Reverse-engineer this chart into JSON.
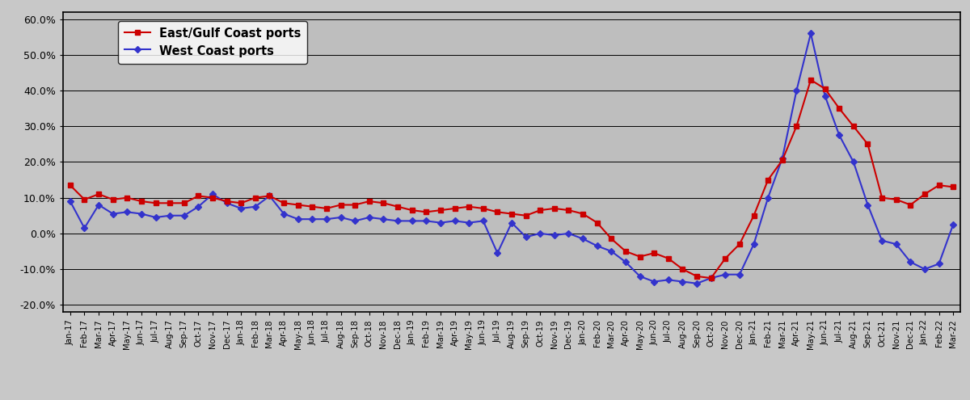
{
  "labels": [
    "Jan-17",
    "Feb-17",
    "Mar-17",
    "Apr-17",
    "May-17",
    "Jun-17",
    "Jul-17",
    "Aug-17",
    "Sep-17",
    "Oct-17",
    "Nov-17",
    "Dec-17",
    "Jan-18",
    "Feb-18",
    "Mar-18",
    "Apr-18",
    "May-18",
    "Jun-18",
    "Jul-18",
    "Aug-18",
    "Sep-18",
    "Oct-18",
    "Nov-18",
    "Dec-18",
    "Jan-19",
    "Feb-19",
    "Mar-19",
    "Apr-19",
    "May-19",
    "Jun-19",
    "Jul-19",
    "Aug-19",
    "Sep-19",
    "Oct-19",
    "Nov-19",
    "Dec-19",
    "Jan-20",
    "Feb-20",
    "Mar-20",
    "Apr-20",
    "May-20",
    "Jun-20",
    "Jul-20",
    "Aug-20",
    "Sep-20",
    "Oct-20",
    "Nov-20",
    "Dec-20",
    "Jan-21",
    "Feb-21",
    "Mar-21",
    "Apr-21",
    "May-21",
    "Jun-21",
    "Jul-21",
    "Aug-21",
    "Sep-21",
    "Oct-21",
    "Nov-21",
    "Dec-21",
    "Jan-22",
    "Feb-22",
    "Mar-22"
  ],
  "east_gulf": [
    13.5,
    9.5,
    11.0,
    9.5,
    10.0,
    9.0,
    8.5,
    8.5,
    8.5,
    10.5,
    10.0,
    9.0,
    8.5,
    10.0,
    10.5,
    8.5,
    8.0,
    7.5,
    7.0,
    8.0,
    8.0,
    9.0,
    8.5,
    7.5,
    6.5,
    6.0,
    6.5,
    7.0,
    7.5,
    7.0,
    6.0,
    5.5,
    5.0,
    6.5,
    7.0,
    6.5,
    5.5,
    3.0,
    -1.5,
    -5.0,
    -6.5,
    -5.5,
    -7.0,
    -10.0,
    -12.0,
    -12.5,
    -7.0,
    -3.0,
    5.0,
    15.0,
    20.5,
    30.0,
    43.0,
    40.5,
    35.0,
    30.0,
    25.0,
    10.0,
    9.5,
    8.0,
    11.0,
    13.5,
    13.0
  ],
  "west_coast": [
    9.0,
    1.5,
    8.0,
    5.5,
    6.0,
    5.5,
    4.5,
    5.0,
    5.0,
    7.5,
    11.0,
    8.5,
    7.0,
    7.5,
    10.5,
    5.5,
    4.0,
    4.0,
    4.0,
    4.5,
    3.5,
    4.5,
    4.0,
    3.5,
    3.5,
    3.5,
    3.0,
    3.5,
    3.0,
    3.5,
    -5.5,
    3.0,
    -1.0,
    0.0,
    -0.5,
    0.0,
    -1.5,
    -3.5,
    -5.0,
    -8.0,
    -12.0,
    -13.5,
    -13.0,
    -13.5,
    -14.0,
    -12.5,
    -11.5,
    -11.5,
    -3.0,
    10.0,
    21.0,
    40.0,
    56.0,
    38.5,
    27.5,
    20.0,
    8.0,
    -2.0,
    -3.0,
    -8.0,
    -10.0,
    -8.5,
    2.5
  ],
  "east_color": "#cc0000",
  "west_color": "#3333cc",
  "bg_color": "#bebebe",
  "fig_bg_color": "#c8c8c8",
  "ylim": [
    -22,
    62
  ],
  "yticks": [
    -20,
    -10,
    0,
    10,
    20,
    30,
    40,
    50,
    60
  ],
  "ytick_labels": [
    "-20.0%",
    "-10.0%",
    "0.0%",
    "10.0%",
    "20.0%",
    "30.0%",
    "40.0%",
    "50.0%",
    "60.0%"
  ],
  "legend_labels": [
    "East/Gulf Coast ports",
    "West Coast ports"
  ]
}
